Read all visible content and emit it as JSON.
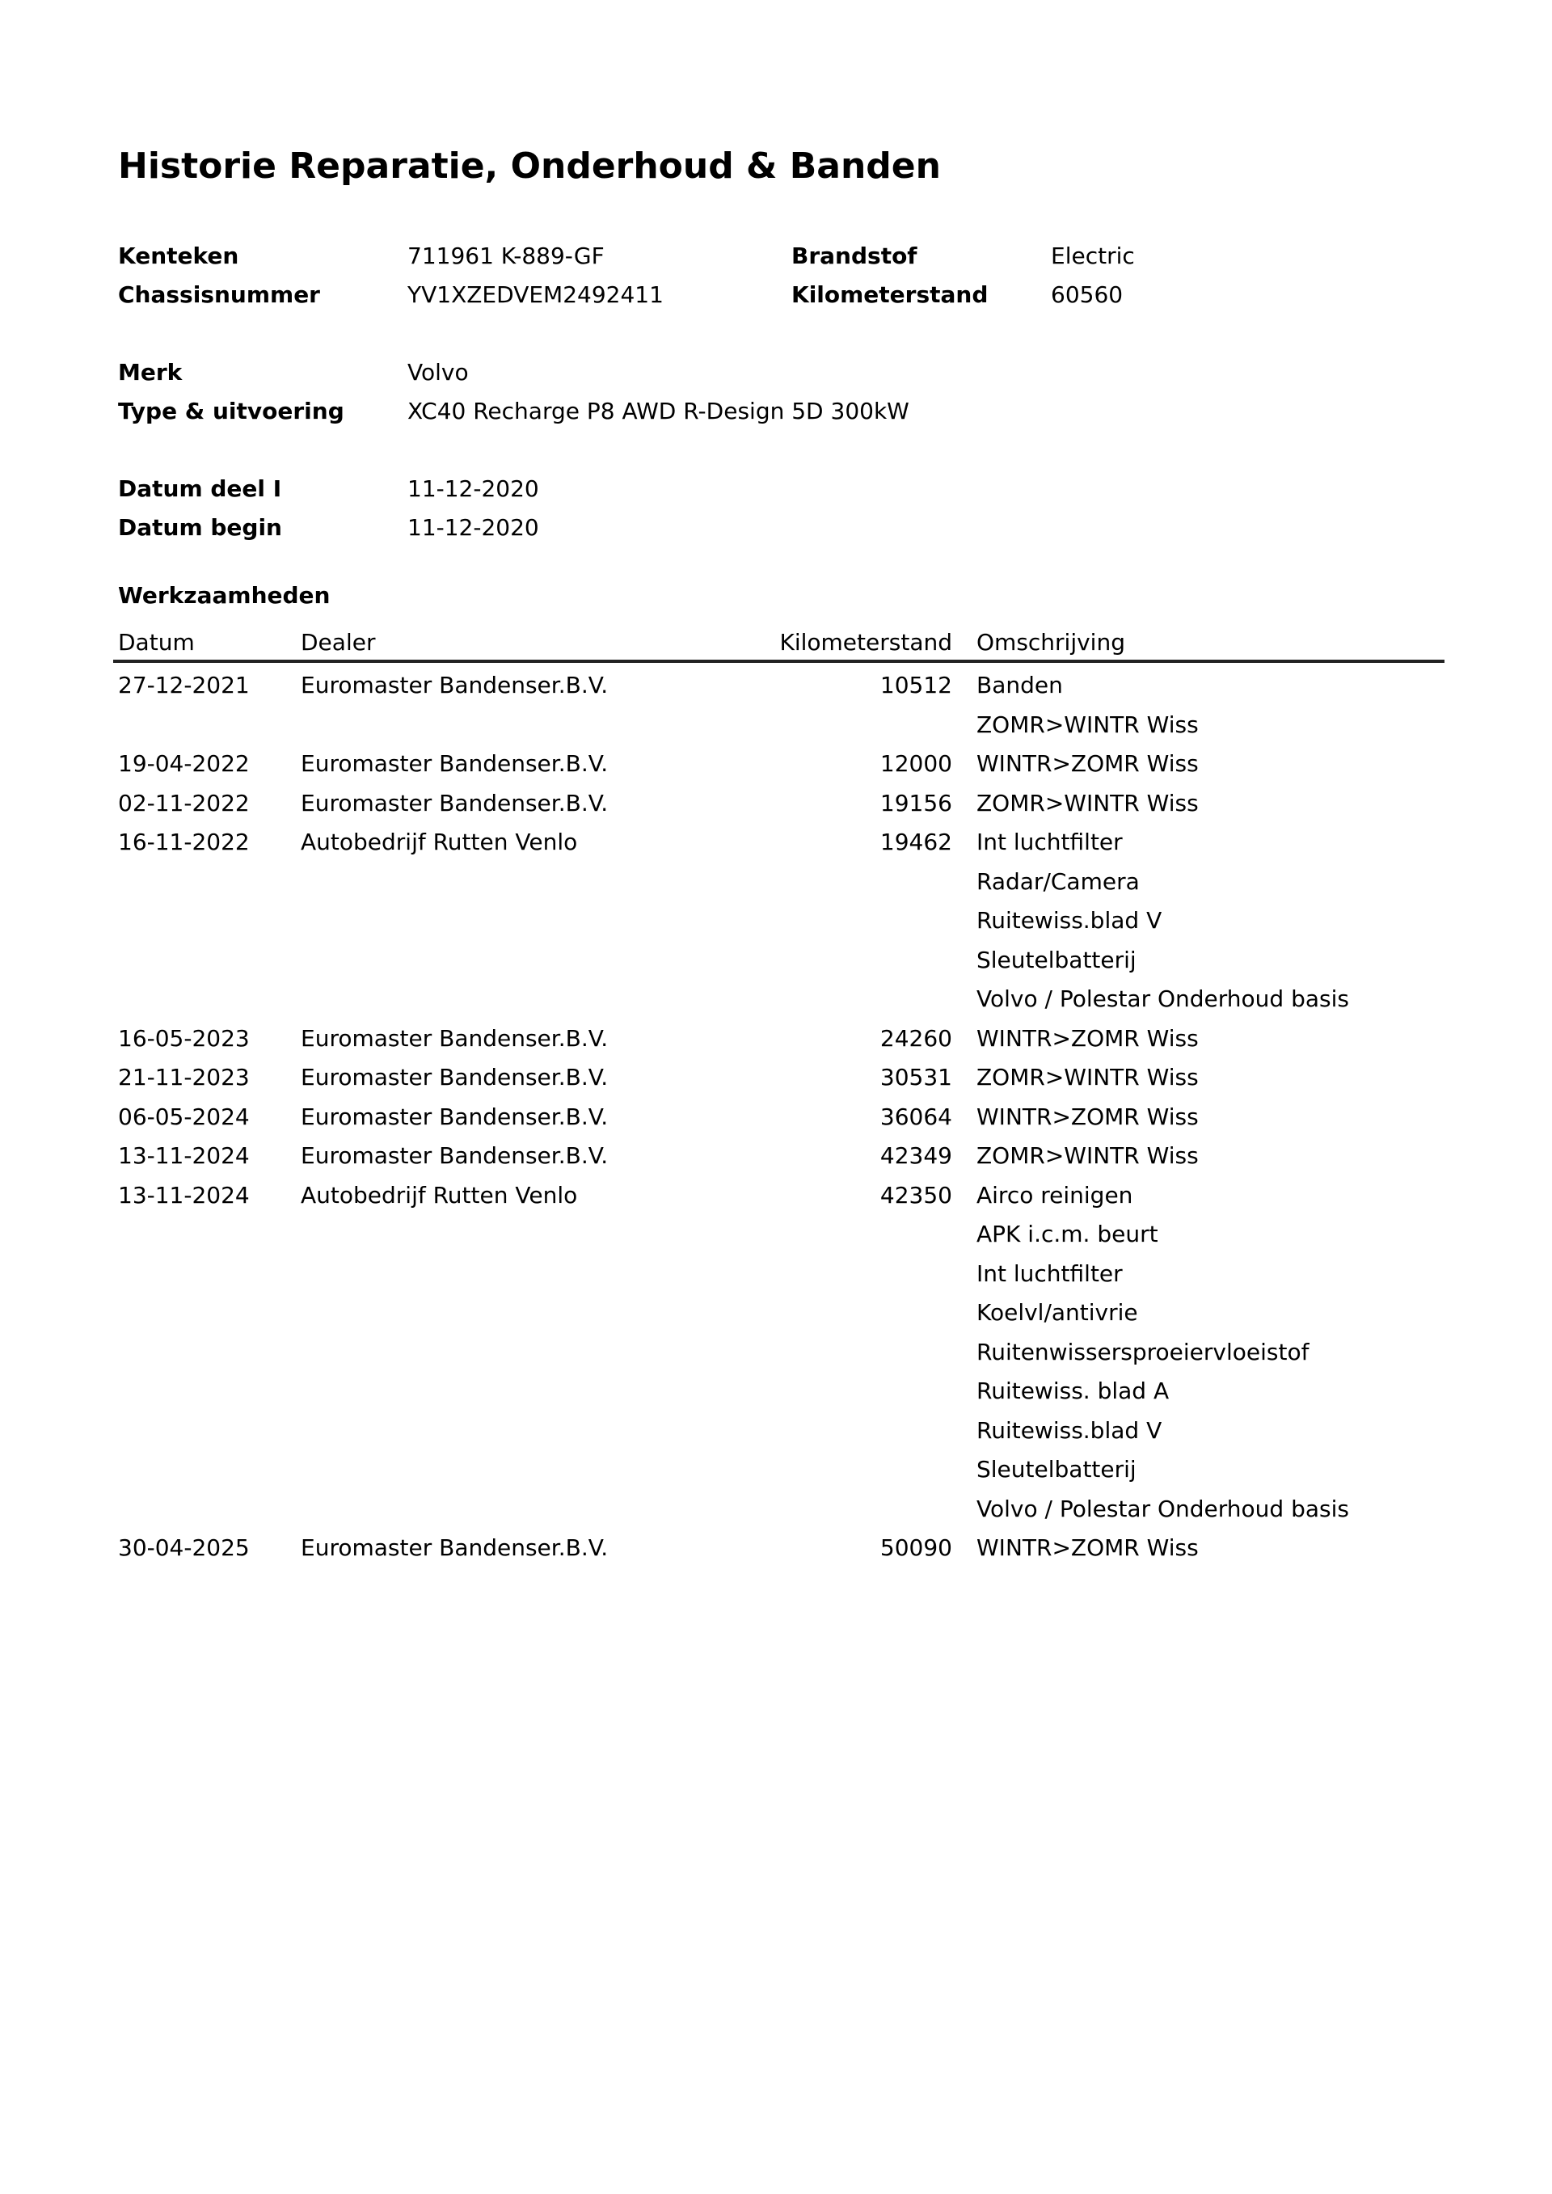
{
  "title": "Historie Reparatie, Onderhoud & Banden",
  "vehicle": {
    "kenteken_label": "Kenteken",
    "kenteken": "711961 K-889-GF",
    "chassis_label": "Chassisnummer",
    "chassis": "YV1XZEDVEM2492411",
    "brandstof_label": "Brandstof",
    "brandstof": "Electric",
    "km_label": "Kilometerstand",
    "km": "60560",
    "merk_label": "Merk",
    "merk": "Volvo",
    "type_label": "Type & uitvoering",
    "type": "XC40 Recharge P8 AWD R-Design 5D 300kW",
    "datum_deel_label": "Datum deel I",
    "datum_deel": "11-12-2020",
    "datum_begin_label": "Datum begin",
    "datum_begin": "11-12-2020"
  },
  "work": {
    "heading": "Werkzaamheden",
    "columns": {
      "date": "Datum",
      "dealer": "Dealer",
      "km": "Kilometerstand",
      "desc": "Omschrijving"
    },
    "entries": [
      {
        "date": "27-12-2021",
        "dealer": "Euromaster Bandenser.B.V.",
        "km": "10512",
        "desc": [
          "Banden",
          "ZOMR>WINTR Wiss"
        ]
      },
      {
        "date": "19-04-2022",
        "dealer": "Euromaster Bandenser.B.V.",
        "km": "12000",
        "desc": [
          "WINTR>ZOMR Wiss"
        ]
      },
      {
        "date": "02-11-2022",
        "dealer": "Euromaster Bandenser.B.V.",
        "km": "19156",
        "desc": [
          "ZOMR>WINTR Wiss"
        ]
      },
      {
        "date": "16-11-2022",
        "dealer": "Autobedrijf Rutten Venlo",
        "km": "19462",
        "desc": [
          "Int luchtfilter",
          "Radar/Camera",
          "Ruitewiss.blad V",
          "Sleutelbatterij",
          "Volvo / Polestar Onderhoud basis"
        ]
      },
      {
        "date": "16-05-2023",
        "dealer": "Euromaster Bandenser.B.V.",
        "km": "24260",
        "desc": [
          "WINTR>ZOMR Wiss"
        ]
      },
      {
        "date": "21-11-2023",
        "dealer": "Euromaster Bandenser.B.V.",
        "km": "30531",
        "desc": [
          "ZOMR>WINTR Wiss"
        ]
      },
      {
        "date": "06-05-2024",
        "dealer": "Euromaster Bandenser.B.V.",
        "km": "36064",
        "desc": [
          "WINTR>ZOMR Wiss"
        ]
      },
      {
        "date": "13-11-2024",
        "dealer": "Euromaster Bandenser.B.V.",
        "km": "42349",
        "desc": [
          "ZOMR>WINTR Wiss"
        ]
      },
      {
        "date": "13-11-2024",
        "dealer": "Autobedrijf Rutten Venlo",
        "km": "42350",
        "desc": [
          "Airco reinigen",
          "APK i.c.m. beurt",
          "Int luchtfilter",
          "Koelvl/antivrie",
          "Ruitenwissersproeiervloeistof",
          "Ruitewiss. blad A",
          "Ruitewiss.blad V",
          "Sleutelbatterij",
          "Volvo / Polestar Onderhoud basis"
        ]
      },
      {
        "date": "30-04-2025",
        "dealer": "Euromaster Bandenser.B.V.",
        "km": "50090",
        "desc": [
          "WINTR>ZOMR Wiss"
        ]
      }
    ]
  }
}
